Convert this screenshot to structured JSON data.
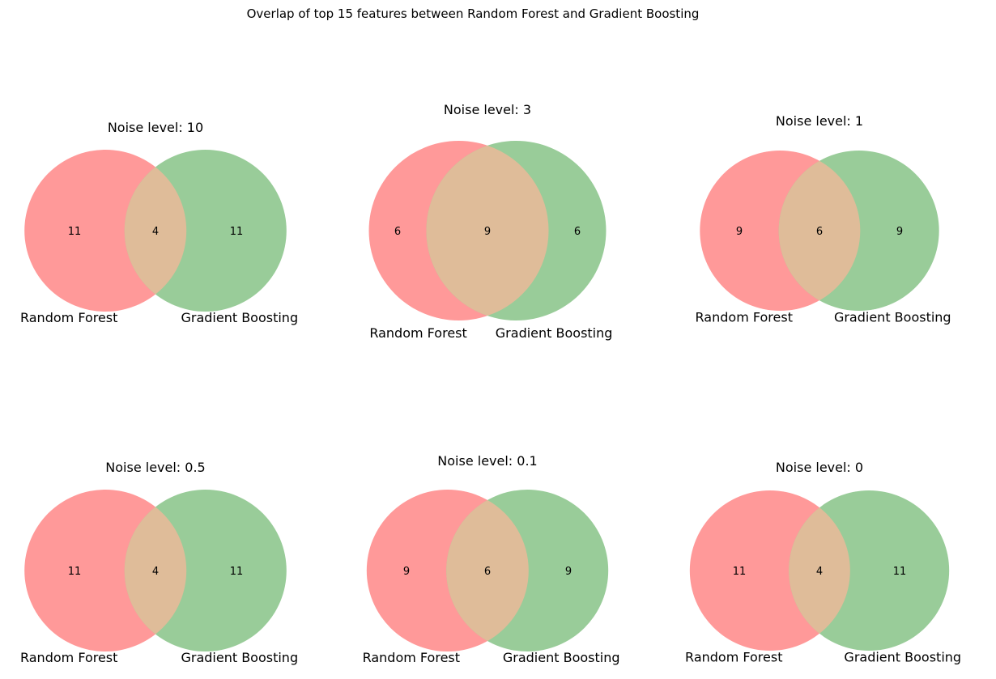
{
  "figure_title": "Overlap of top 15 features between Random Forest and Gradient Boosting",
  "colors": {
    "set_a": "#ff9999",
    "set_b": "#99cc99",
    "overlap": "#dfbc99",
    "text": "#000000"
  },
  "chart_data": [
    {
      "type": "venn",
      "title": "Noise level: 10",
      "set_labels": [
        "Random Forest",
        "Gradient Boosting"
      ],
      "only_a": 11,
      "both": 4,
      "only_b": 11
    },
    {
      "type": "venn",
      "title": "Noise level: 3",
      "set_labels": [
        "Random Forest",
        "Gradient Boosting"
      ],
      "only_a": 6,
      "both": 9,
      "only_b": 6
    },
    {
      "type": "venn",
      "title": "Noise level: 1",
      "set_labels": [
        "Random Forest",
        "Gradient Boosting"
      ],
      "only_a": 9,
      "both": 6,
      "only_b": 9
    },
    {
      "type": "venn",
      "title": "Noise level: 0.5",
      "set_labels": [
        "Random Forest",
        "Gradient Boosting"
      ],
      "only_a": 11,
      "both": 4,
      "only_b": 11
    },
    {
      "type": "venn",
      "title": "Noise level: 0.1",
      "set_labels": [
        "Random Forest",
        "Gradient Boosting"
      ],
      "only_a": 9,
      "both": 6,
      "only_b": 9
    },
    {
      "type": "venn",
      "title": "Noise level: 0",
      "set_labels": [
        "Random Forest",
        "Gradient Boosting"
      ],
      "only_a": 11,
      "both": 4,
      "only_b": 11
    }
  ]
}
